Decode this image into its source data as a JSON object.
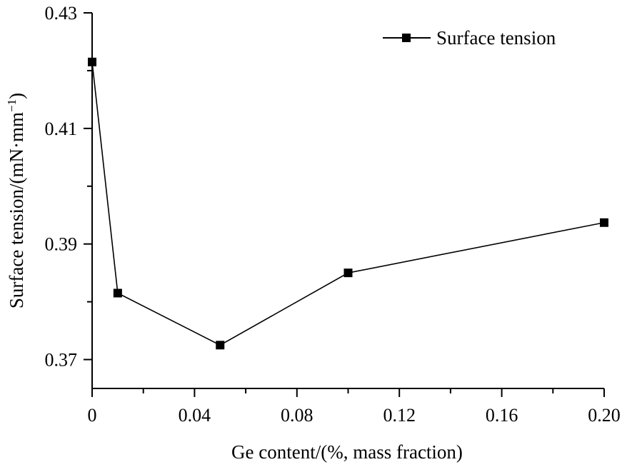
{
  "chart_data": {
    "type": "line",
    "x": [
      0,
      0.01,
      0.05,
      0.1,
      0.2
    ],
    "series": [
      {
        "name": "Surface tension",
        "values": [
          0.4215,
          0.3815,
          0.3725,
          0.385,
          0.3937
        ]
      }
    ],
    "xlabel": "Ge content/(%, mass fraction)",
    "ylabel_main": "Surface tension/(mN·mm",
    "ylabel_sup": "−1",
    "ylabel_close": ")",
    "xlim": [
      0,
      0.2
    ],
    "ylim": [
      0.365,
      0.43
    ],
    "x_ticks": [
      0,
      0.04,
      0.08,
      0.12,
      0.16,
      0.2
    ],
    "x_tick_labels": [
      "0",
      "0.04",
      "0.08",
      "0.12",
      "0.16",
      "0.20"
    ],
    "x_minor_ticks": [
      0.02,
      0.06,
      0.1,
      0.14,
      0.18
    ],
    "y_ticks": [
      0.37,
      0.39,
      0.41,
      0.43
    ],
    "y_tick_labels": [
      "0.37",
      "0.39",
      "0.41",
      "0.43"
    ],
    "y_minor_ticks": [
      0.38,
      0.4,
      0.42
    ],
    "legend_position": "top-right",
    "grid": false,
    "line_color": "#000000",
    "marker": "square"
  }
}
